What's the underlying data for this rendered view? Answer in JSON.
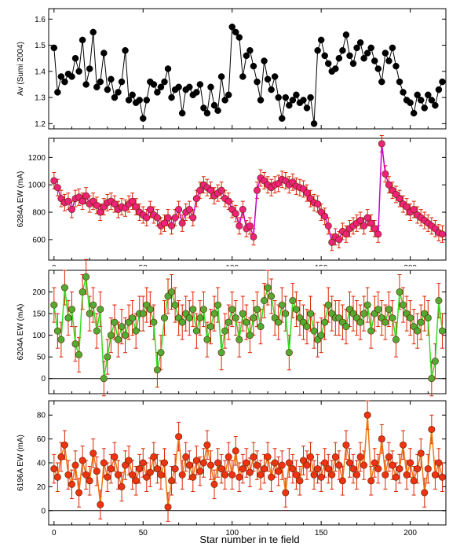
{
  "chart_data": [
    {
      "type": "line",
      "ylabel": "Av (Sumi 2004)",
      "ylim": [
        1.18,
        1.64
      ],
      "xlim": [
        -3,
        220
      ],
      "yticks": [
        1.2,
        1.3,
        1.4,
        1.5,
        1.6
      ],
      "xtick_labels_shown": false,
      "error_bars": false,
      "colors": {
        "line": "#000000",
        "marker": "#000000"
      },
      "series": [
        {
          "x": [
            0,
            2,
            4,
            6,
            8,
            10,
            12,
            14,
            16,
            18,
            20,
            22,
            24,
            26,
            28,
            30,
            32,
            34,
            36,
            38,
            40,
            42,
            44,
            46,
            48,
            50,
            52,
            54,
            56,
            58,
            60,
            62,
            64,
            66,
            68,
            70,
            72,
            74,
            76,
            78,
            80,
            82,
            84,
            86,
            88,
            90,
            92,
            94,
            96,
            98,
            100,
            102,
            104,
            106,
            108,
            110,
            112,
            114,
            116,
            118,
            120,
            122,
            124,
            126,
            128,
            130,
            132,
            134,
            136,
            138,
            140,
            142,
            144,
            146,
            148,
            150,
            152,
            154,
            156,
            158,
            160,
            162,
            164,
            166,
            168,
            170,
            172,
            174,
            176,
            178,
            180,
            182,
            184,
            186,
            188,
            190,
            192,
            194,
            196,
            198,
            200,
            202,
            204,
            206,
            208,
            210,
            212,
            214,
            216,
            218
          ],
          "y": [
            1.49,
            1.32,
            1.38,
            1.36,
            1.39,
            1.38,
            1.45,
            1.4,
            1.52,
            1.35,
            1.41,
            1.55,
            1.34,
            1.36,
            1.47,
            1.33,
            1.37,
            1.3,
            1.32,
            1.36,
            1.48,
            1.29,
            1.31,
            1.28,
            1.29,
            1.22,
            1.29,
            1.36,
            1.35,
            1.32,
            1.34,
            1.36,
            1.41,
            1.3,
            1.33,
            1.34,
            1.24,
            1.33,
            1.34,
            1.31,
            1.32,
            1.35,
            1.26,
            1.24,
            1.34,
            1.27,
            1.25,
            1.38,
            1.29,
            1.31,
            1.57,
            1.55,
            1.53,
            1.38,
            1.46,
            1.48,
            1.42,
            1.36,
            1.29,
            1.44,
            1.37,
            1.33,
            1.38,
            1.3,
            1.22,
            1.3,
            1.27,
            1.29,
            1.31,
            1.28,
            1.29,
            1.26,
            1.3,
            1.2,
            1.48,
            1.52,
            1.46,
            1.43,
            1.4,
            1.41,
            1.45,
            1.48,
            1.54,
            1.46,
            1.43,
            1.49,
            1.51,
            1.45,
            1.47,
            1.49,
            1.44,
            1.41,
            1.36,
            1.47,
            1.44,
            1.49,
            1.42,
            1.36,
            1.32,
            1.29,
            1.28,
            1.24,
            1.31,
            1.29,
            1.26,
            1.31,
            1.29,
            1.27,
            1.33,
            1.36
          ]
        }
      ]
    },
    {
      "type": "line",
      "ylabel": "6284A EW (mA)",
      "ylim": [
        450,
        1340
      ],
      "xlim": [
        -3,
        220
      ],
      "yticks": [
        600,
        800,
        1000,
        1200
      ],
      "xtick_labels_shown": true,
      "xtick_labels_partially_hidden": true,
      "error_bars": true,
      "error_value": 60,
      "colors": {
        "line": "#cc00cc",
        "marker": "#ee2277",
        "error": "#dd2200"
      },
      "series": [
        {
          "x": [
            0,
            2,
            4,
            6,
            8,
            10,
            12,
            14,
            16,
            18,
            20,
            22,
            24,
            26,
            28,
            30,
            32,
            34,
            36,
            38,
            40,
            42,
            44,
            46,
            48,
            50,
            52,
            54,
            56,
            58,
            60,
            62,
            64,
            66,
            68,
            70,
            72,
            74,
            76,
            78,
            80,
            82,
            84,
            86,
            88,
            90,
            92,
            94,
            96,
            98,
            100,
            102,
            104,
            106,
            108,
            110,
            112,
            114,
            116,
            118,
            120,
            122,
            124,
            126,
            128,
            130,
            132,
            134,
            136,
            138,
            140,
            142,
            144,
            146,
            148,
            150,
            152,
            154,
            156,
            158,
            160,
            162,
            164,
            166,
            168,
            170,
            172,
            174,
            176,
            178,
            180,
            182,
            184,
            186,
            188,
            190,
            192,
            194,
            196,
            198,
            200,
            202,
            204,
            206,
            208,
            210,
            212,
            214,
            216,
            218
          ],
          "y": [
            1030,
            980,
            900,
            870,
            880,
            820,
            900,
            910,
            880,
            920,
            860,
            880,
            850,
            800,
            840,
            870,
            880,
            860,
            820,
            840,
            830,
            860,
            880,
            840,
            800,
            780,
            760,
            820,
            780,
            760,
            700,
            720,
            760,
            700,
            760,
            820,
            720,
            800,
            820,
            760,
            900,
            960,
            1000,
            980,
            960,
            920,
            940,
            960,
            900,
            880,
            820,
            790,
            700,
            820,
            680,
            700,
            620,
            960,
            1050,
            1030,
            1000,
            980,
            1000,
            1010,
            1040,
            1030,
            1000,
            1020,
            990,
            980,
            970,
            940,
            900,
            870,
            860,
            800,
            770,
            700,
            580,
            620,
            600,
            660,
            640,
            680,
            700,
            720,
            740,
            700,
            760,
            720,
            680,
            640,
            1300,
            1080,
            1000,
            960,
            930,
            900,
            860,
            840,
            800,
            820,
            780,
            760,
            740,
            720,
            700,
            680,
            650,
            640
          ]
        }
      ]
    },
    {
      "type": "line",
      "ylabel": "6204A EW (mA)",
      "ylim": [
        -35,
        250
      ],
      "xlim": [
        -3,
        220
      ],
      "yticks": [
        0,
        50,
        100,
        150,
        200
      ],
      "xtick_labels_shown": false,
      "zero_line": true,
      "error_bars": true,
      "error_value": 40,
      "colors": {
        "line": "#33dd22",
        "marker": "#55aa33",
        "error": "#dd2200"
      },
      "series": [
        {
          "x": [
            0,
            2,
            4,
            6,
            8,
            10,
            12,
            14,
            16,
            18,
            20,
            22,
            24,
            26,
            28,
            30,
            32,
            34,
            36,
            38,
            40,
            42,
            44,
            46,
            48,
            50,
            52,
            54,
            56,
            58,
            60,
            62,
            64,
            66,
            68,
            70,
            72,
            74,
            76,
            78,
            80,
            82,
            84,
            86,
            88,
            90,
            92,
            94,
            96,
            98,
            100,
            102,
            104,
            106,
            108,
            110,
            112,
            114,
            116,
            118,
            120,
            122,
            124,
            126,
            128,
            130,
            132,
            134,
            136,
            138,
            140,
            142,
            144,
            146,
            148,
            150,
            152,
            154,
            156,
            158,
            160,
            162,
            164,
            166,
            168,
            170,
            172,
            174,
            176,
            178,
            180,
            182,
            184,
            186,
            188,
            190,
            192,
            194,
            196,
            198,
            200,
            202,
            204,
            206,
            208,
            210,
            212,
            214,
            216,
            218
          ],
          "y": [
            170,
            110,
            90,
            210,
            140,
            160,
            80,
            55,
            200,
            235,
            150,
            170,
            110,
            160,
            0,
            50,
            100,
            130,
            90,
            120,
            100,
            130,
            140,
            110,
            150,
            150,
            170,
            160,
            130,
            20,
            60,
            140,
            190,
            200,
            170,
            140,
            130,
            150,
            140,
            160,
            110,
            140,
            160,
            90,
            120,
            150,
            170,
            60,
            110,
            130,
            160,
            140,
            90,
            150,
            130,
            100,
            140,
            160,
            120,
            180,
            210,
            190,
            140,
            130,
            170,
            150,
            60,
            180,
            160,
            140,
            130,
            120,
            150,
            110,
            90,
            100,
            130,
            170,
            150,
            140,
            140,
            130,
            120,
            160,
            150,
            140,
            130,
            150,
            170,
            110,
            150,
            160,
            140,
            130,
            160,
            140,
            90,
            200,
            170,
            150,
            140,
            120,
            110,
            130,
            150,
            140,
            0,
            40,
            180,
            110
          ]
        }
      ]
    },
    {
      "type": "line",
      "ylabel": "6196A EW (mA)",
      "xlabel": "Star number in te field",
      "ylim": [
        -12,
        92
      ],
      "xlim": [
        -3,
        220
      ],
      "yticks": [
        0,
        20,
        40,
        60,
        80
      ],
      "xticks": [
        0,
        50,
        100,
        150,
        200
      ],
      "xtick_labels_shown": true,
      "zero_line": true,
      "error_bars": true,
      "error_value": 12,
      "colors": {
        "line": "#ee7711",
        "marker": "#ee3311",
        "error": "#dd2200"
      },
      "series": [
        {
          "x": [
            0,
            2,
            4,
            6,
            8,
            10,
            12,
            14,
            16,
            18,
            20,
            22,
            24,
            26,
            28,
            30,
            32,
            34,
            36,
            38,
            40,
            42,
            44,
            46,
            48,
            50,
            52,
            54,
            56,
            58,
            60,
            62,
            64,
            66,
            68,
            70,
            72,
            74,
            76,
            78,
            80,
            82,
            84,
            86,
            88,
            90,
            92,
            94,
            96,
            98,
            100,
            102,
            104,
            106,
            108,
            110,
            112,
            114,
            116,
            118,
            120,
            122,
            124,
            126,
            128,
            130,
            132,
            134,
            136,
            138,
            140,
            142,
            144,
            146,
            148,
            150,
            152,
            154,
            156,
            158,
            160,
            162,
            164,
            166,
            168,
            170,
            172,
            174,
            176,
            178,
            180,
            182,
            184,
            186,
            188,
            190,
            192,
            194,
            196,
            198,
            200,
            202,
            204,
            206,
            208,
            210,
            212,
            214,
            216,
            218
          ],
          "y": [
            35,
            28,
            45,
            55,
            30,
            22,
            38,
            15,
            42,
            30,
            25,
            48,
            33,
            5,
            40,
            28,
            35,
            45,
            30,
            20,
            38,
            42,
            30,
            25,
            35,
            40,
            28,
            32,
            45,
            35,
            30,
            40,
            3,
            25,
            35,
            62,
            30,
            45,
            38,
            28,
            42,
            33,
            40,
            55,
            38,
            22,
            40,
            35,
            30,
            45,
            30,
            50,
            28,
            35,
            40,
            32,
            45,
            38,
            30,
            35,
            45,
            28,
            40,
            33,
            38,
            15,
            40,
            35,
            30,
            25,
            42,
            38,
            45,
            30,
            35,
            28,
            40,
            35,
            30,
            45,
            38,
            25,
            55,
            40,
            35,
            30,
            45,
            38,
            80,
            25,
            40,
            35,
            60,
            30,
            45,
            38,
            28,
            35,
            55,
            30,
            40,
            25,
            35,
            48,
            15,
            35,
            68,
            30,
            40,
            28
          ]
        }
      ]
    }
  ]
}
